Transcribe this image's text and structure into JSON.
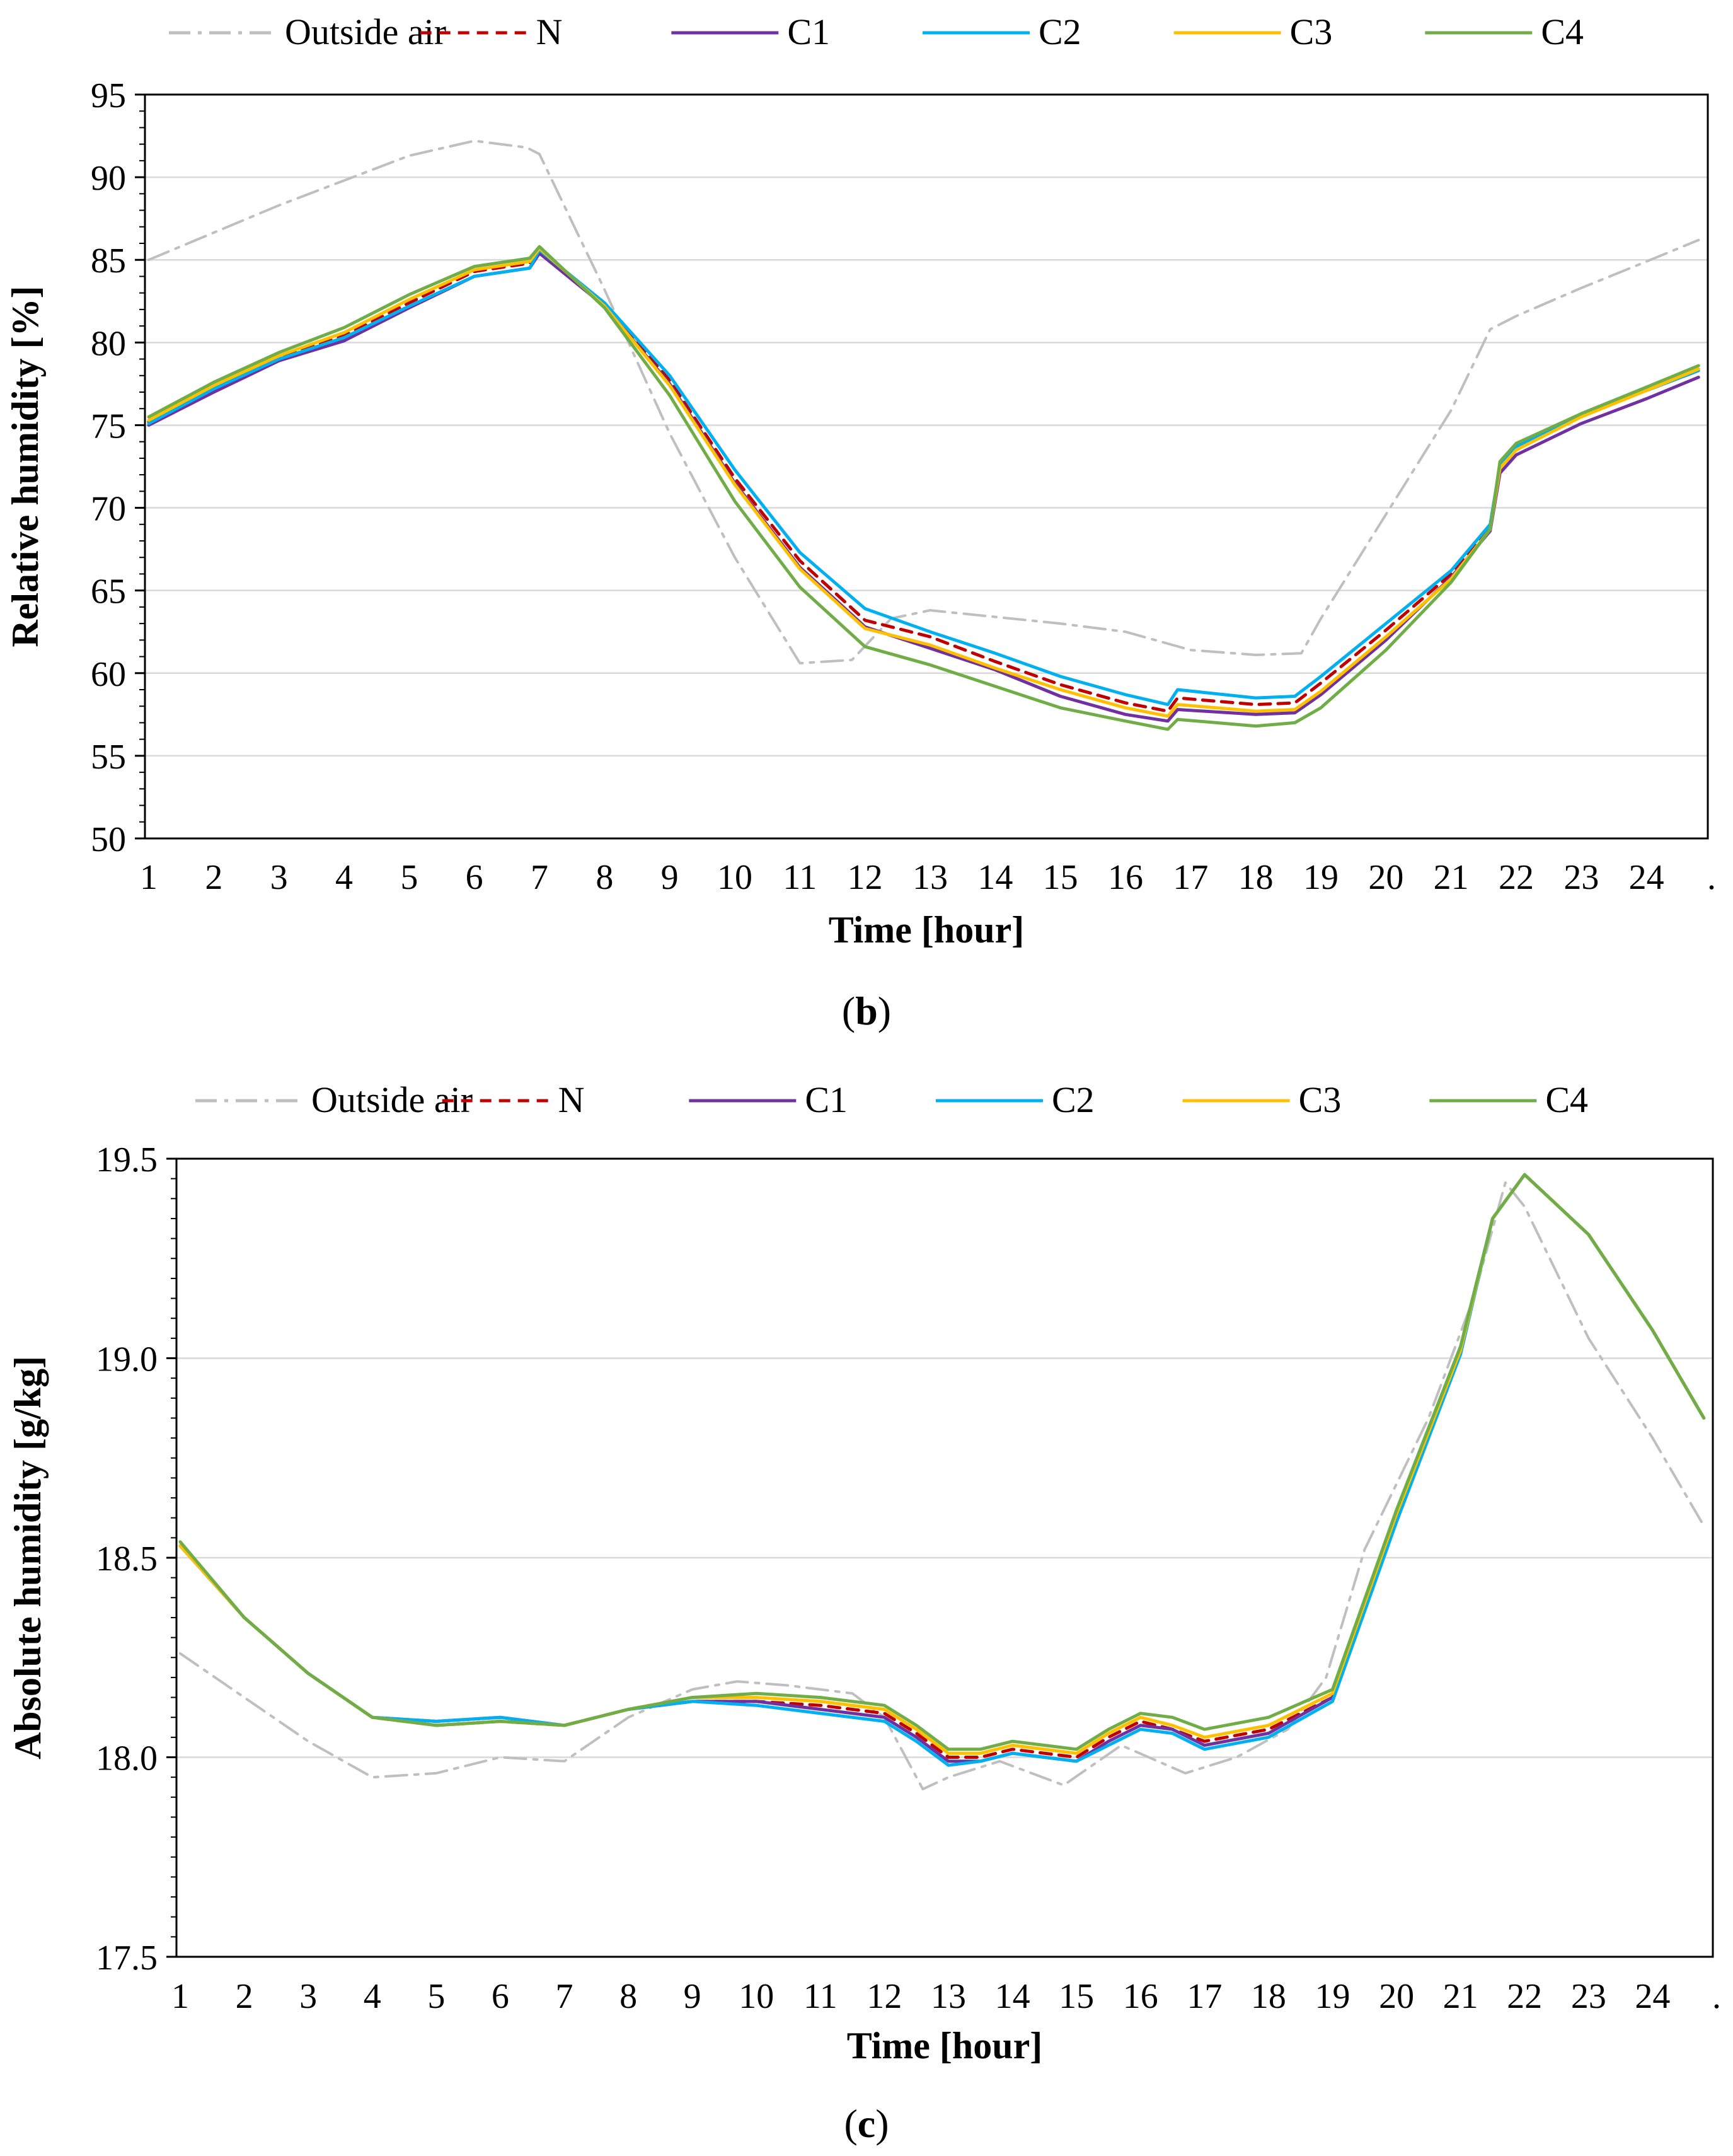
{
  "legend": {
    "items": [
      {
        "label": "Outside air",
        "color": "#bfbfbf",
        "style": "dashdot"
      },
      {
        "label": "N",
        "color": "#c00000",
        "style": "dashed"
      },
      {
        "label": "C1",
        "color": "#7030a0",
        "style": "solid"
      },
      {
        "label": "C2",
        "color": "#00b0f0",
        "style": "solid"
      },
      {
        "label": "C3",
        "color": "#ffc000",
        "style": "solid"
      },
      {
        "label": "C4",
        "color": "#70ad47",
        "style": "solid"
      }
    ]
  },
  "chart_data": [
    {
      "type": "line",
      "panel_label": "b",
      "xlabel": "Time [hour]",
      "ylabel": "Relative humidity [%]",
      "ylim": [
        50,
        95
      ],
      "yticks": [
        "50",
        "55",
        "60",
        "65",
        "70",
        "75",
        "80",
        "85",
        "90",
        "95"
      ],
      "xticks": [
        "1",
        "2",
        "3",
        "4",
        "5",
        "6",
        "7",
        "8",
        "9",
        "10",
        "11",
        "12",
        "13",
        "14",
        "15",
        "16",
        "17",
        "18",
        "19",
        "20",
        "21",
        "22",
        "23",
        "24",
        "."
      ],
      "xlim": [
        1,
        25
      ],
      "grid": true,
      "legend_position": "top",
      "series": [
        {
          "name": "Outside air",
          "x": [
            1,
            3,
            5,
            6,
            6.8,
            7,
            8,
            9,
            10,
            11,
            11.8,
            12.4,
            13,
            14,
            15,
            16,
            17,
            18,
            18.7,
            19,
            20,
            21,
            21.6,
            22,
            23,
            24,
            24.8
          ],
          "y": [
            85,
            88.3,
            91.3,
            92.2,
            91.8,
            91.4,
            83.2,
            74.5,
            67,
            60.6,
            60.8,
            63.3,
            63.8,
            63.4,
            63,
            62.5,
            61.4,
            61.1,
            61.2,
            63.3,
            69.6,
            75.9,
            80.8,
            81.6,
            83.3,
            84.9,
            86.2
          ]
        },
        {
          "name": "N",
          "x": [
            1,
            2,
            3,
            4,
            5,
            6,
            6.85,
            7,
            8,
            9,
            10,
            11,
            12,
            13,
            14,
            15,
            16,
            16.65,
            16.8,
            18,
            18.6,
            19,
            20,
            21,
            21.6,
            21.75,
            22,
            23,
            24,
            24.8
          ],
          "y": [
            75.2,
            77.3,
            79.1,
            80.4,
            82.4,
            84.3,
            84.8,
            85.6,
            82.3,
            77.7,
            71.8,
            66.8,
            63.2,
            62.2,
            60.7,
            59.3,
            58.2,
            57.7,
            58.5,
            58.1,
            58.2,
            59.4,
            62.6,
            66,
            68.9,
            72.5,
            73.6,
            75.6,
            77.1,
            78.3
          ]
        },
        {
          "name": "C1",
          "x": [
            1,
            2,
            3,
            4,
            5,
            6,
            6.85,
            7,
            8,
            9,
            10,
            11,
            12,
            13,
            14,
            15,
            16,
            16.65,
            16.8,
            18,
            18.6,
            19,
            20,
            21,
            21.6,
            21.75,
            22,
            23,
            24,
            24.8
          ],
          "y": [
            75,
            77,
            78.9,
            80.1,
            82.1,
            84,
            84.5,
            85.4,
            82.2,
            77.5,
            71.5,
            66.4,
            62.8,
            61.5,
            60.2,
            58.6,
            57.5,
            57.1,
            57.8,
            57.5,
            57.6,
            58.7,
            62,
            65.8,
            68.6,
            72.1,
            73.2,
            75.1,
            76.6,
            77.9
          ]
        },
        {
          "name": "C2",
          "x": [
            1,
            2,
            3,
            4,
            5,
            6,
            6.85,
            7,
            8,
            9,
            10,
            11,
            12,
            13,
            14,
            15,
            16,
            16.65,
            16.8,
            18,
            18.6,
            19,
            20,
            21,
            21.6,
            21.75,
            22,
            23,
            24,
            24.8
          ],
          "y": [
            75.1,
            77.2,
            79,
            80.3,
            82.2,
            84,
            84.5,
            85.6,
            82.4,
            78,
            72.3,
            67.3,
            63.9,
            62.5,
            61.2,
            59.8,
            58.7,
            58.1,
            59,
            58.5,
            58.6,
            59.8,
            63,
            66.2,
            69,
            72.6,
            73.7,
            75.6,
            77.1,
            78.3
          ]
        },
        {
          "name": "C3",
          "x": [
            1,
            2,
            3,
            4,
            5,
            6,
            6.85,
            7,
            8,
            9,
            10,
            11,
            12,
            13,
            14,
            15,
            16,
            16.65,
            16.8,
            18,
            18.6,
            19,
            20,
            21,
            21.6,
            21.75,
            22,
            23,
            24,
            24.8
          ],
          "y": [
            75.3,
            77.4,
            79.2,
            80.6,
            82.6,
            84.4,
            84.9,
            85.7,
            82.2,
            77.4,
            71.4,
            66.3,
            62.7,
            61.7,
            60.3,
            59,
            57.9,
            57.4,
            58.1,
            57.7,
            57.8,
            58.9,
            62.2,
            65.7,
            68.7,
            72.4,
            73.5,
            75.5,
            77.1,
            78.4
          ]
        },
        {
          "name": "C4",
          "x": [
            1,
            2,
            3,
            4,
            5,
            6,
            6.85,
            7,
            8,
            9,
            10,
            11,
            12,
            13,
            14,
            15,
            16,
            16.65,
            16.8,
            18,
            18.6,
            19,
            20,
            21,
            21.6,
            21.75,
            22,
            23,
            24,
            24.8
          ],
          "y": [
            75.5,
            77.6,
            79.4,
            80.9,
            82.9,
            84.6,
            85.1,
            85.8,
            82.1,
            76.8,
            70.4,
            65.2,
            61.6,
            60.5,
            59.2,
            57.9,
            57.1,
            56.6,
            57.2,
            56.8,
            57,
            57.9,
            61.4,
            65.5,
            68.7,
            72.8,
            73.9,
            75.7,
            77.3,
            78.6
          ]
        }
      ]
    },
    {
      "type": "line",
      "panel_label": "c",
      "xlabel": "Time [hour]",
      "ylabel": "Absolute humidity [g/kg]",
      "ylim": [
        17.5,
        19.5
      ],
      "yticks": [
        "17.5",
        "18.0",
        "18.5",
        "19.0",
        "19.5"
      ],
      "xticks": [
        "1",
        "2",
        "3",
        "4",
        "5",
        "6",
        "7",
        "8",
        "9",
        "10",
        "11",
        "12",
        "13",
        "14",
        "15",
        "16",
        "17",
        "18",
        "19",
        "20",
        "21",
        "22",
        "23",
        "24",
        "."
      ],
      "xlim": [
        1,
        25
      ],
      "grid": true,
      "legend_position": "top",
      "series": [
        {
          "name": "Outside air",
          "x": [
            1,
            2,
            3,
            4,
            5,
            6,
            7,
            8,
            9,
            9.7,
            10.5,
            11.5,
            12,
            12.6,
            13,
            13.8,
            14.8,
            15.7,
            16.7,
            17.5,
            18.3,
            18.9,
            19.5,
            20.5,
            21.2,
            21.7,
            22,
            23,
            24,
            24.8
          ],
          "y": [
            18.26,
            18.15,
            18.04,
            17.95,
            17.96,
            18,
            17.99,
            18.1,
            18.17,
            18.19,
            18.18,
            18.16,
            18.1,
            17.92,
            17.95,
            17.99,
            17.93,
            18.03,
            17.96,
            18,
            18.07,
            18.2,
            18.52,
            18.85,
            19.15,
            19.44,
            19.38,
            19.05,
            18.8,
            18.58
          ]
        },
        {
          "name": "N",
          "x": [
            1,
            2,
            3,
            4,
            5,
            6,
            7,
            8,
            9,
            10,
            11,
            12,
            12.5,
            13,
            13.5,
            14,
            15,
            15.5,
            16,
            16.5,
            17,
            18,
            19,
            20,
            21,
            21.5,
            22,
            23,
            24,
            24.8
          ],
          "y": [
            18.53,
            18.35,
            18.21,
            18.1,
            18.08,
            18.09,
            18.08,
            18.12,
            18.14,
            18.14,
            18.13,
            18.11,
            18.06,
            18,
            18,
            18.02,
            18,
            18.05,
            18.09,
            18.07,
            18.04,
            18.07,
            18.15,
            18.6,
            19.02,
            19.35,
            19.46,
            19.31,
            19.07,
            18.85
          ]
        },
        {
          "name": "C1",
          "x": [
            1,
            2,
            3,
            4,
            5,
            6,
            7,
            8,
            9,
            10,
            11,
            12,
            12.5,
            13,
            13.5,
            14,
            15,
            15.5,
            16,
            16.5,
            17,
            18,
            19,
            20,
            21,
            21.5,
            22,
            23,
            24,
            24.8
          ],
          "y": [
            18.53,
            18.35,
            18.21,
            18.1,
            18.09,
            18.1,
            18.08,
            18.12,
            18.14,
            18.14,
            18.12,
            18.1,
            18.05,
            17.99,
            17.99,
            18.01,
            17.99,
            18.04,
            18.08,
            18.07,
            18.03,
            18.06,
            18.15,
            18.6,
            19.02,
            19.35,
            19.46,
            19.31,
            19.07,
            18.85
          ]
        },
        {
          "name": "C2",
          "x": [
            1,
            2,
            3,
            4,
            5,
            6,
            7,
            8,
            9,
            10,
            11,
            12,
            12.5,
            13,
            13.5,
            14,
            15,
            15.5,
            16,
            16.5,
            17,
            18,
            19,
            20,
            21,
            21.5,
            22,
            23,
            24,
            24.8
          ],
          "y": [
            18.53,
            18.35,
            18.21,
            18.1,
            18.09,
            18.1,
            18.08,
            18.12,
            18.14,
            18.13,
            18.11,
            18.09,
            18.04,
            17.98,
            17.99,
            18.01,
            17.99,
            18.03,
            18.07,
            18.06,
            18.02,
            18.05,
            18.14,
            18.59,
            19.01,
            19.35,
            19.46,
            19.31,
            19.07,
            18.85
          ]
        },
        {
          "name": "C3",
          "x": [
            1,
            2,
            3,
            4,
            5,
            6,
            7,
            8,
            9,
            10,
            11,
            12,
            12.5,
            13,
            13.5,
            14,
            15,
            15.5,
            16,
            16.5,
            17,
            18,
            19,
            20,
            21,
            21.5,
            22,
            23,
            24,
            24.8
          ],
          "y": [
            18.53,
            18.35,
            18.21,
            18.1,
            18.08,
            18.09,
            18.08,
            18.12,
            18.15,
            18.15,
            18.14,
            18.12,
            18.07,
            18.01,
            18.01,
            18.03,
            18.01,
            18.06,
            18.1,
            18.08,
            18.05,
            18.08,
            18.16,
            18.61,
            19.02,
            19.35,
            19.46,
            19.31,
            19.07,
            18.85
          ]
        },
        {
          "name": "C4",
          "x": [
            1,
            2,
            3,
            4,
            5,
            6,
            7,
            8,
            9,
            10,
            11,
            12,
            12.5,
            13,
            13.5,
            14,
            15,
            15.5,
            16,
            16.5,
            17,
            18,
            19,
            20,
            21,
            21.5,
            22,
            23,
            24,
            24.8
          ],
          "y": [
            18.54,
            18.35,
            18.21,
            18.1,
            18.08,
            18.09,
            18.08,
            18.12,
            18.15,
            18.16,
            18.15,
            18.13,
            18.08,
            18.02,
            18.02,
            18.04,
            18.02,
            18.07,
            18.11,
            18.1,
            18.07,
            18.1,
            18.17,
            18.62,
            19.03,
            19.35,
            19.46,
            19.31,
            19.07,
            18.85
          ]
        }
      ]
    }
  ]
}
